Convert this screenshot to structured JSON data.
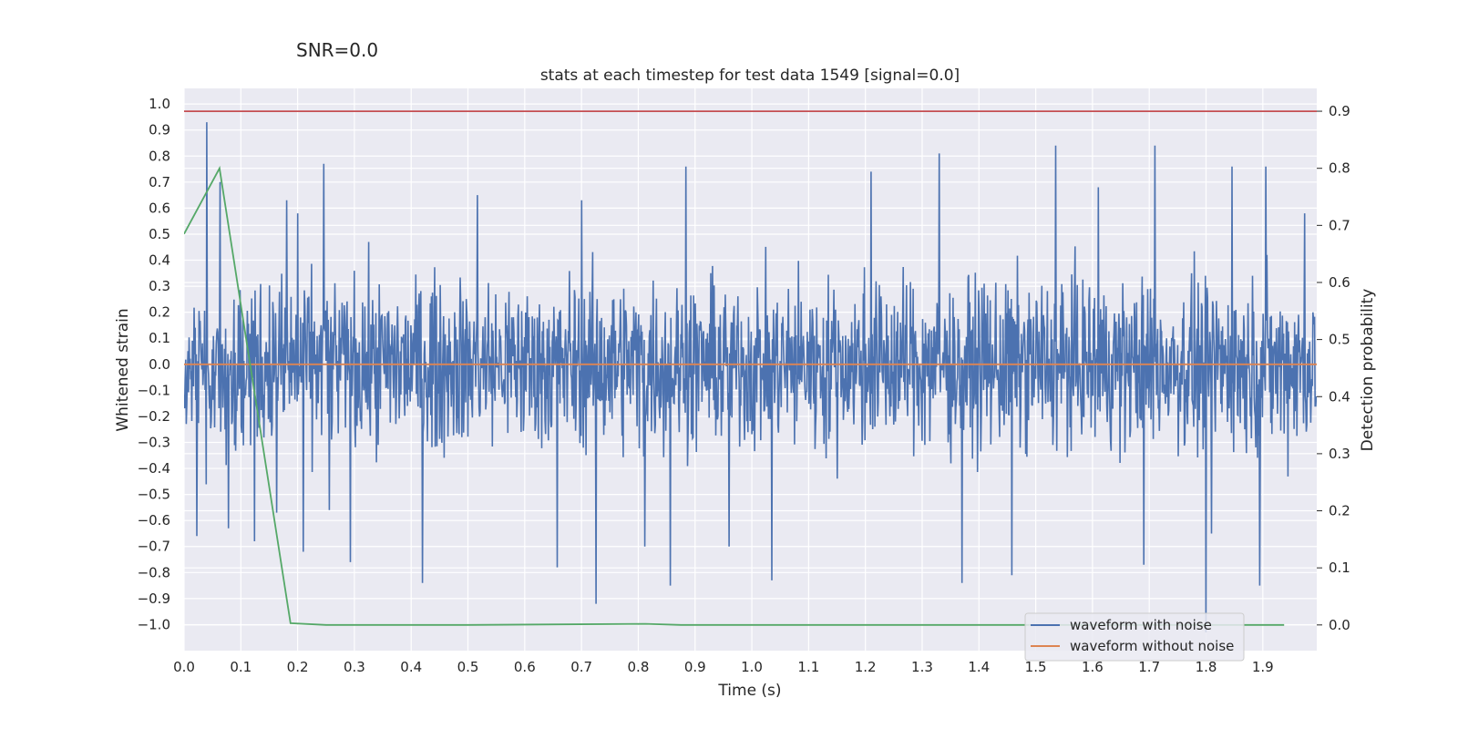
{
  "suptitle": "SNR=0.0",
  "chart_data": {
    "type": "line",
    "title": "stats at each timestep for test data 1549 [signal=0.0]",
    "xlabel": "Time (s)",
    "ylabel": "Whitened strain",
    "y2label": "Detection probability",
    "xlim": [
      0.0,
      1.995
    ],
    "ylim": [
      -1.1,
      1.06
    ],
    "y2lim": [
      -0.045,
      0.94
    ],
    "xticks": [
      0.0,
      0.1,
      0.2,
      0.3,
      0.4,
      0.5,
      0.6,
      0.7,
      0.8,
      0.9,
      1.0,
      1.1,
      1.2,
      1.3,
      1.4,
      1.5,
      1.6,
      1.7,
      1.8,
      1.9
    ],
    "yticks": [
      -1.0,
      -0.9,
      -0.8,
      -0.7,
      -0.6,
      -0.5,
      -0.4,
      -0.3,
      -0.2,
      -0.1,
      0.0,
      0.1,
      0.2,
      0.3,
      0.4,
      0.5,
      0.6,
      0.7,
      0.8,
      0.9,
      1.0
    ],
    "y2ticks": [
      0.0,
      0.1,
      0.2,
      0.3,
      0.4,
      0.5,
      0.6,
      0.7,
      0.8,
      0.9
    ],
    "grid": true,
    "legend_position": "lower-right",
    "series": [
      {
        "name": "waveform with noise",
        "color": "#4c72b0",
        "axis": "left",
        "description": "dense noise trace, about 2048 samples over 2 s, amplitude roughly within +/-0.6 with spikes",
        "spikes": [
          {
            "x": 0.04,
            "y": 0.93
          },
          {
            "x": 0.063,
            "y": 0.7
          },
          {
            "x": 0.022,
            "y": -0.66
          },
          {
            "x": 0.078,
            "y": -0.63
          },
          {
            "x": 0.124,
            "y": -0.68
          },
          {
            "x": 0.163,
            "y": -0.57
          },
          {
            "x": 0.181,
            "y": 0.63
          },
          {
            "x": 0.2,
            "y": 0.58
          },
          {
            "x": 0.21,
            "y": -0.72
          },
          {
            "x": 0.246,
            "y": 0.77
          },
          {
            "x": 0.256,
            "y": -0.56
          },
          {
            "x": 0.293,
            "y": -0.76
          },
          {
            "x": 0.42,
            "y": -0.84
          },
          {
            "x": 0.517,
            "y": 0.65
          },
          {
            "x": 0.657,
            "y": -0.78
          },
          {
            "x": 0.7,
            "y": 0.63
          },
          {
            "x": 0.726,
            "y": -0.92
          },
          {
            "x": 0.812,
            "y": -0.7
          },
          {
            "x": 0.856,
            "y": -0.85
          },
          {
            "x": 0.884,
            "y": 0.76
          },
          {
            "x": 0.96,
            "y": -0.7
          },
          {
            "x": 1.035,
            "y": -0.83
          },
          {
            "x": 1.21,
            "y": 0.74
          },
          {
            "x": 1.33,
            "y": 0.81
          },
          {
            "x": 1.37,
            "y": -0.84
          },
          {
            "x": 1.458,
            "y": -0.81
          },
          {
            "x": 1.535,
            "y": 0.84
          },
          {
            "x": 1.61,
            "y": 0.68
          },
          {
            "x": 1.69,
            "y": -0.77
          },
          {
            "x": 1.71,
            "y": 0.84
          },
          {
            "x": 1.8,
            "y": -1.03
          },
          {
            "x": 1.81,
            "y": -0.65
          },
          {
            "x": 1.846,
            "y": 0.76
          },
          {
            "x": 1.895,
            "y": -0.85
          },
          {
            "x": 1.905,
            "y": 0.76
          },
          {
            "x": 1.974,
            "y": 0.58
          }
        ],
        "amplitude": 0.32
      },
      {
        "name": "waveform without noise",
        "color": "#dd8452",
        "axis": "left",
        "x": [
          0.0,
          1.995
        ],
        "y": [
          0.0,
          0.0
        ]
      },
      {
        "name": "",
        "color": "#55a868",
        "axis": "right",
        "x": [
          0.0,
          0.0625,
          0.1875,
          0.25,
          0.5,
          0.8125,
          0.875,
          1.0,
          1.5,
          1.9375
        ],
        "y": [
          0.685,
          0.8,
          0.003,
          0.0,
          0.0,
          0.002,
          0.0,
          0.0,
          0.0,
          0.0
        ]
      },
      {
        "name": "",
        "color": "#c44e52",
        "axis": "right",
        "x": [
          0.0,
          1.995
        ],
        "y": [
          0.9,
          0.9
        ]
      }
    ]
  }
}
